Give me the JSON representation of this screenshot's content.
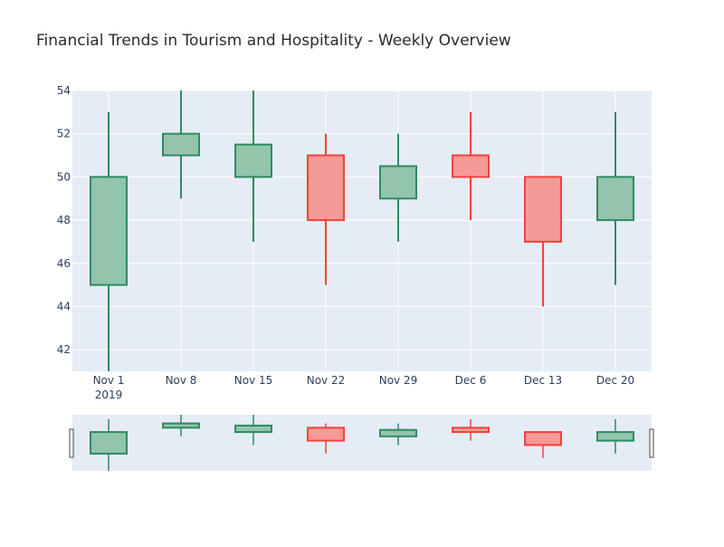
{
  "chart_data": {
    "type": "candlestick",
    "title": "Financial Trends in Tourism and Hospitality - Weekly Overview",
    "x": [
      "Nov 1",
      "Nov 8",
      "Nov 15",
      "Nov 22",
      "Nov 29",
      "Dec 6",
      "Dec 13",
      "Dec 20"
    ],
    "x_year_label": "2019",
    "open": [
      45,
      51,
      50,
      51,
      49,
      51,
      50,
      48
    ],
    "high": [
      53,
      54,
      54,
      52,
      52,
      53,
      50,
      53
    ],
    "low": [
      41,
      49,
      47,
      45,
      47,
      48,
      44,
      45
    ],
    "close": [
      50,
      52,
      51.5,
      48,
      50.5,
      50,
      47,
      50
    ],
    "ylim": [
      41,
      54
    ],
    "yticks": [
      42,
      44,
      46,
      48,
      50,
      52,
      54
    ],
    "grid": true,
    "colors": {
      "increasing_fill": "#93c4ac",
      "increasing_line": "#2e8b61",
      "decreasing_fill": "#f49a97",
      "decreasing_line": "#f4413a",
      "plot_bg": "#e5ecf6",
      "grid": "#ffffff"
    },
    "range_slider": true
  }
}
